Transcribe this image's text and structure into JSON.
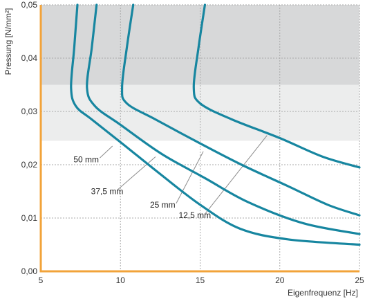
{
  "chart_data": {
    "type": "line",
    "title": "",
    "xlabel": "Eigenfrequenz [Hz]",
    "ylabel": "Pressung [N/mm²]",
    "xlim": [
      5,
      25
    ],
    "ylim": [
      0,
      0.05
    ],
    "x_ticks": [
      "5",
      "10",
      "15",
      "20",
      "25"
    ],
    "y_ticks": [
      "0,00",
      "0,01",
      "0,02",
      "0,03",
      "0,04",
      "0,05"
    ],
    "grid": true,
    "bands": [
      {
        "y_from": 0.035,
        "y_to": 0.05,
        "color": "#d7d8d9"
      },
      {
        "y_from": 0.0245,
        "y_to": 0.035,
        "color": "#eceded"
      }
    ],
    "series": [
      {
        "name": "50 mm",
        "points": [
          [
            7.3,
            0.05
          ],
          [
            7.1,
            0.042
          ],
          [
            6.9,
            0.0345
          ],
          [
            7.2,
            0.031
          ],
          [
            8.2,
            0.0285
          ],
          [
            10.1,
            0.024
          ],
          [
            12.6,
            0.018
          ],
          [
            15.0,
            0.0125
          ],
          [
            17.5,
            0.008
          ],
          [
            20.5,
            0.006
          ],
          [
            25.0,
            0.005
          ]
        ]
      },
      {
        "name": "37,5 mm",
        "points": [
          [
            8.5,
            0.05
          ],
          [
            8.2,
            0.042
          ],
          [
            7.9,
            0.0345
          ],
          [
            8.4,
            0.031
          ],
          [
            10.0,
            0.0275
          ],
          [
            12.6,
            0.022
          ],
          [
            15.3,
            0.0175
          ],
          [
            18.0,
            0.013
          ],
          [
            21.5,
            0.009
          ],
          [
            25.0,
            0.007
          ]
        ]
      },
      {
        "name": "25 mm",
        "points": [
          [
            10.8,
            0.05
          ],
          [
            10.4,
            0.042
          ],
          [
            10.1,
            0.0345
          ],
          [
            10.4,
            0.0315
          ],
          [
            12.2,
            0.0285
          ],
          [
            15.0,
            0.024
          ],
          [
            17.6,
            0.02
          ],
          [
            20.5,
            0.016
          ],
          [
            23.0,
            0.0125
          ],
          [
            25.0,
            0.0105
          ]
        ]
      },
      {
        "name": "12,5 mm",
        "points": [
          [
            15.3,
            0.05
          ],
          [
            14.9,
            0.042
          ],
          [
            14.6,
            0.0345
          ],
          [
            15.0,
            0.0315
          ],
          [
            17.0,
            0.0285
          ],
          [
            20.0,
            0.025
          ],
          [
            22.7,
            0.0215
          ],
          [
            25.0,
            0.0195
          ]
        ]
      }
    ],
    "annotations": [
      {
        "text": "50 mm",
        "series": "50 mm",
        "pointer": [
          9.5,
          0.0235
        ],
        "label_at": [
          7.4,
          0.021
        ]
      },
      {
        "text": "37,5 mm",
        "series": "37,5 mm",
        "pointer": [
          12.2,
          0.0215
        ],
        "label_at": [
          8.5,
          0.015
        ]
      },
      {
        "text": "25 mm",
        "series": "25 mm",
        "pointer": [
          15.2,
          0.0225
        ],
        "label_at": [
          12.2,
          0.0125
        ]
      },
      {
        "text": "12,5 mm",
        "series": "12,5 mm",
        "pointer": [
          19.2,
          0.0255
        ],
        "label_at": [
          14.0,
          0.0105
        ]
      }
    ],
    "colors": {
      "line": "#1786a0",
      "axis": "#f2a33a",
      "grid": "#a9a9a9",
      "leader": "#8c8c8c"
    }
  }
}
